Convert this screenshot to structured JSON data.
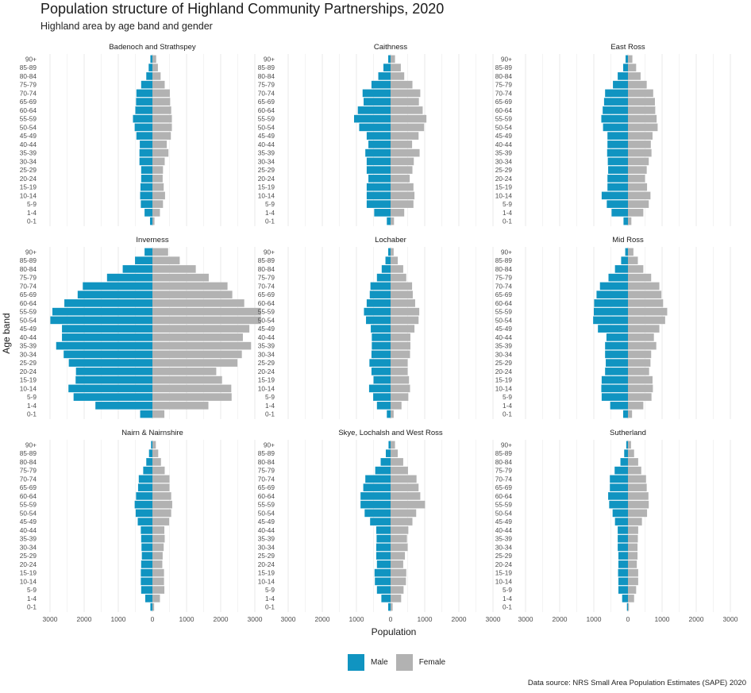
{
  "title": "Population structure of Highland Community Partnerships, 2020",
  "subtitle": "Highland area by age band and gender",
  "source": "Data source: NRS Small Area Population Estimates (SAPE) 2020",
  "colors": {
    "male": "#1094C1",
    "female": "#B2B2B2",
    "grid": "#EBEBEB"
  },
  "legend": {
    "male": "Male",
    "female": "Female"
  },
  "chart_data": {
    "type": "bar",
    "orientation": "horizontal-pyramid",
    "xlabel": "Population",
    "ylabel": "Age band",
    "xlim": [
      -3000,
      3000
    ],
    "xticks": [
      -3000,
      -2000,
      -1000,
      0,
      1000,
      2000,
      3000
    ],
    "xtick_labels": [
      "3000",
      "2000",
      "1000",
      "0",
      "1000",
      "2000",
      "3000"
    ],
    "categories": [
      "0-1",
      "1-4",
      "5-9",
      "10-14",
      "15-19",
      "20-24",
      "25-29",
      "30-34",
      "35-39",
      "40-44",
      "45-49",
      "50-54",
      "55-59",
      "60-64",
      "65-69",
      "70-74",
      "75-79",
      "80-84",
      "85-89",
      "90+"
    ],
    "panels": [
      {
        "name": "Badenoch and Strathspey",
        "male": [
          70,
          230,
          340,
          360,
          350,
          330,
          330,
          380,
          380,
          370,
          470,
          520,
          570,
          500,
          480,
          470,
          330,
          180,
          110,
          60
        ],
        "female": [
          60,
          220,
          310,
          370,
          330,
          300,
          310,
          360,
          470,
          420,
          540,
          570,
          570,
          550,
          520,
          510,
          360,
          240,
          160,
          110
        ]
      },
      {
        "name": "Caithness",
        "male": [
          110,
          480,
          700,
          700,
          700,
          650,
          700,
          700,
          740,
          650,
          700,
          920,
          1070,
          960,
          790,
          820,
          560,
          360,
          210,
          70
        ],
        "female": [
          100,
          400,
          670,
          700,
          670,
          560,
          640,
          680,
          850,
          630,
          820,
          980,
          1050,
          940,
          830,
          870,
          640,
          400,
          300,
          130
        ]
      },
      {
        "name": "East Ross",
        "male": [
          130,
          480,
          620,
          770,
          600,
          600,
          580,
          590,
          610,
          600,
          600,
          730,
          780,
          740,
          700,
          670,
          440,
          300,
          140,
          70
        ],
        "female": [
          100,
          450,
          610,
          660,
          560,
          500,
          550,
          610,
          690,
          670,
          720,
          870,
          840,
          800,
          790,
          740,
          550,
          370,
          240,
          130
        ]
      },
      {
        "name": "Inverness",
        "male": [
          360,
          1670,
          2310,
          2460,
          2250,
          2240,
          2450,
          2600,
          2820,
          2650,
          2650,
          2990,
          2930,
          2580,
          2190,
          2040,
          1330,
          870,
          510,
          230
        ],
        "female": [
          350,
          1640,
          2320,
          2310,
          2040,
          1870,
          2490,
          2620,
          2890,
          2650,
          2840,
          3180,
          3180,
          2690,
          2340,
          2200,
          1650,
          1270,
          800,
          460
        ]
      },
      {
        "name": "Lochaber",
        "male": [
          110,
          400,
          510,
          630,
          500,
          560,
          620,
          560,
          550,
          550,
          580,
          720,
          780,
          700,
          610,
          590,
          400,
          260,
          150,
          70
        ],
        "female": [
          90,
          320,
          520,
          570,
          540,
          500,
          500,
          570,
          580,
          580,
          700,
          820,
          840,
          720,
          650,
          630,
          460,
          370,
          210,
          90
        ]
      },
      {
        "name": "Mid Ross",
        "male": [
          140,
          520,
          770,
          780,
          770,
          670,
          650,
          670,
          670,
          630,
          880,
          1020,
          1000,
          990,
          920,
          820,
          570,
          380,
          200,
          80
        ],
        "female": [
          120,
          450,
          690,
          730,
          720,
          620,
          660,
          680,
          830,
          760,
          920,
          1090,
          1150,
          1030,
          980,
          920,
          680,
          450,
          290,
          160
        ]
      },
      {
        "name": "Nairn & Nairnshire",
        "male": [
          60,
          210,
          330,
          340,
          340,
          330,
          310,
          320,
          330,
          340,
          430,
          490,
          520,
          480,
          420,
          400,
          270,
          180,
          100,
          40
        ],
        "female": [
          50,
          220,
          350,
          340,
          340,
          290,
          300,
          330,
          360,
          350,
          490,
          550,
          580,
          550,
          500,
          500,
          360,
          250,
          170,
          100
        ]
      },
      {
        "name": "Skye, Lochalsh and West Ross",
        "male": [
          70,
          270,
          400,
          460,
          470,
          400,
          420,
          420,
          410,
          420,
          600,
          760,
          880,
          880,
          800,
          740,
          450,
          290,
          140,
          60
        ],
        "female": [
          60,
          310,
          380,
          450,
          460,
          370,
          420,
          500,
          480,
          520,
          640,
          750,
          1010,
          870,
          820,
          760,
          510,
          370,
          210,
          130
        ]
      },
      {
        "name": "Sutherland",
        "male": [
          30,
          170,
          280,
          280,
          290,
          280,
          280,
          300,
          300,
          300,
          380,
          450,
          550,
          580,
          530,
          530,
          390,
          220,
          110,
          50
        ],
        "female": [
          30,
          180,
          240,
          300,
          300,
          260,
          280,
          280,
          290,
          300,
          410,
          560,
          610,
          600,
          550,
          530,
          390,
          300,
          180,
          90
        ]
      }
    ]
  }
}
